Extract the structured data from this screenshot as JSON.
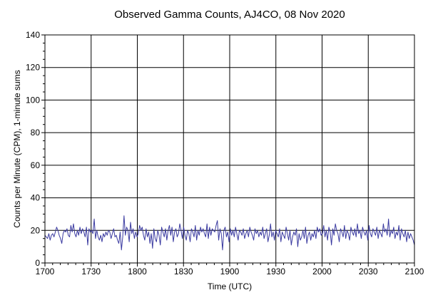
{
  "chart_data": {
    "type": "line",
    "title": "Observed Gamma Counts, AJ4CO, 08 Nov 2020",
    "xlabel": "Time (UTC)",
    "ylabel": "Counts per Minute (CPM), 1-minute sums",
    "xlim": [
      "1700",
      "2100"
    ],
    "ylim": [
      0,
      140
    ],
    "x_ticks": [
      "1700",
      "1730",
      "1800",
      "1830",
      "1900",
      "1930",
      "2000",
      "2030",
      "2100"
    ],
    "y_ticks": [
      0,
      20,
      40,
      60,
      80,
      100,
      120,
      140
    ],
    "grid": true,
    "colors": {
      "series": "#3a3aa0",
      "grid": "#000000"
    },
    "series": [
      {
        "values": [
          17,
          16,
          15,
          18,
          14,
          17,
          18,
          16,
          19,
          22,
          20,
          17,
          15,
          12,
          18,
          20,
          19,
          21,
          17,
          16,
          23,
          19,
          24,
          18,
          16,
          20,
          17,
          22,
          18,
          21,
          19,
          16,
          22,
          11,
          21,
          19,
          20,
          18,
          27,
          15,
          20,
          16,
          14,
          17,
          13,
          18,
          16,
          19,
          17,
          20,
          19,
          15,
          18,
          21,
          16,
          17,
          14,
          12,
          19,
          8,
          16,
          29,
          17,
          22,
          20,
          13,
          25,
          18,
          21,
          15,
          19,
          16,
          18,
          23,
          20,
          22,
          17,
          14,
          21,
          16,
          19,
          12,
          18,
          9,
          21,
          15,
          13,
          20,
          17,
          11,
          22,
          19,
          16,
          21,
          14,
          20,
          23,
          17,
          22,
          13,
          19,
          21,
          16,
          18,
          24,
          20,
          15,
          22,
          17,
          14,
          20,
          18,
          13,
          21,
          19,
          16,
          23,
          14,
          20,
          17,
          22,
          19,
          21,
          18,
          16,
          24,
          15,
          22,
          17,
          21,
          20,
          19,
          23,
          26,
          14,
          21,
          18,
          8,
          20,
          22,
          16,
          19,
          13,
          21,
          17,
          20,
          16,
          22,
          18,
          14,
          20,
          19,
          17,
          21,
          15,
          18,
          20,
          16,
          22,
          19,
          17,
          14,
          21,
          18,
          20,
          16,
          19,
          17,
          22,
          15,
          18,
          21,
          13,
          17,
          24,
          16,
          19,
          14,
          20,
          18,
          16,
          21,
          13,
          19,
          17,
          15,
          22,
          18,
          14,
          20,
          11,
          16,
          19,
          17,
          21,
          10,
          18,
          14,
          16,
          20,
          15,
          22,
          12,
          17,
          19,
          14,
          18,
          16,
          20,
          15,
          22,
          19,
          21,
          17,
          18,
          23,
          16,
          20,
          14,
          22,
          19,
          11,
          21,
          17,
          24,
          20,
          18,
          13,
          21,
          19,
          16,
          23,
          15,
          20,
          18,
          14,
          22,
          19,
          17,
          21,
          16,
          24,
          18,
          20,
          15,
          22,
          19,
          17,
          20,
          14,
          23,
          18,
          16,
          21,
          19,
          17,
          22,
          15,
          20,
          18,
          16,
          24,
          19,
          21,
          17,
          27,
          16,
          20,
          18,
          22,
          15,
          19,
          17,
          23,
          14,
          21,
          18,
          16,
          20,
          13,
          19,
          15,
          18,
          16,
          14,
          11
        ]
      }
    ]
  }
}
